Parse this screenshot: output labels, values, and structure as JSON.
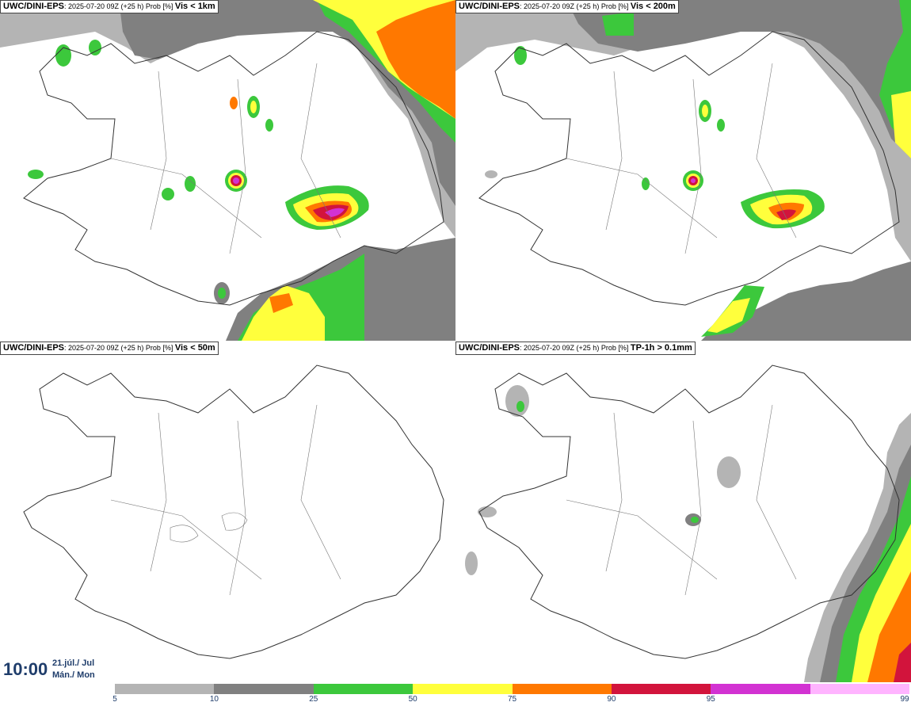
{
  "panels": [
    {
      "model": "UWC/DINI-EPS",
      "run": ": 2025-07-20 09Z (+25 h) Prob [%] ",
      "variable": "Vis < 1km"
    },
    {
      "model": "UWC/DINI-EPS",
      "run": ": 2025-07-20 09Z (+25 h) Prob [%] ",
      "variable": "Vis < 200m"
    },
    {
      "model": "UWC/DINI-EPS",
      "run": ": 2025-07-20 09Z (+25 h) Prob [%] ",
      "variable": "Vis < 50m"
    },
    {
      "model": "UWC/DINI-EPS",
      "run": ": 2025-07-20 09Z (+25 h) Prob [%] ",
      "variable": "TP-1h > 0.1mm"
    }
  ],
  "valid_time": {
    "time": "10:00",
    "date_line1": "21.júl./ Jul",
    "date_line2": "Mán./ Mon"
  },
  "colorbar": {
    "ticks": [
      "5",
      "10",
      "25",
      "50",
      "75",
      "90",
      "95",
      "99"
    ],
    "colors": [
      "#b4b4b4",
      "#808080",
      "#3cc83c",
      "#ffff3c",
      "#ff7800",
      "#d2143c",
      "#d232d2",
      "#ffb4ff"
    ]
  }
}
